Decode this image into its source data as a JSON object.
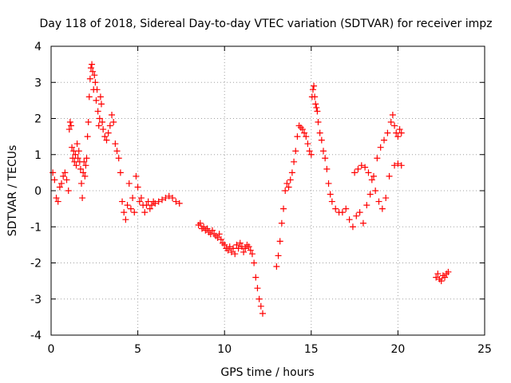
{
  "chart_data": {
    "type": "scatter",
    "title": "Day 118 of 2018, Sidereal Day-to-day VTEC variation (SDTVAR) for receiver impz",
    "xlabel": "GPS time / hours",
    "ylabel": "SDTVAR / TECUs",
    "xlim": [
      0,
      25
    ],
    "ylim": [
      -4,
      4
    ],
    "xticks": [
      "0",
      "5",
      "10",
      "15",
      "20",
      "25"
    ],
    "yticks": [
      "-4",
      "-3",
      "-2",
      "-1",
      "0",
      "1",
      "2",
      "3",
      "4"
    ],
    "grid": true,
    "marker": "plus",
    "color": "#ff0000",
    "series": [
      {
        "name": "impz",
        "x": [
          0.1,
          0.2,
          0.3,
          0.4,
          0.5,
          0.6,
          0.7,
          0.8,
          0.9,
          1.0,
          1.05,
          1.1,
          1.15,
          1.2,
          1.25,
          1.3,
          1.35,
          1.4,
          1.45,
          1.5,
          1.55,
          1.6,
          1.65,
          1.7,
          1.75,
          1.8,
          1.85,
          1.9,
          1.95,
          2.0,
          2.05,
          2.1,
          2.15,
          2.2,
          2.25,
          2.3,
          2.35,
          2.4,
          2.45,
          2.5,
          2.55,
          2.6,
          2.65,
          2.7,
          2.75,
          2.8,
          2.85,
          2.9,
          2.95,
          3.0,
          3.1,
          3.2,
          3.3,
          3.4,
          3.5,
          3.6,
          3.7,
          3.8,
          3.9,
          4.0,
          4.1,
          4.2,
          4.3,
          4.4,
          4.5,
          4.6,
          4.7,
          4.8,
          4.9,
          5.0,
          5.1,
          5.2,
          5.3,
          5.4,
          5.5,
          5.6,
          5.7,
          5.8,
          5.9,
          6.0,
          6.2,
          6.4,
          6.6,
          6.8,
          7.0,
          7.2,
          7.4,
          8.5,
          8.6,
          8.7,
          8.8,
          8.9,
          9.0,
          9.1,
          9.2,
          9.3,
          9.4,
          9.5,
          9.6,
          9.7,
          9.8,
          9.9,
          10.0,
          10.1,
          10.2,
          10.3,
          10.4,
          10.5,
          10.6,
          10.7,
          10.8,
          10.9,
          11.0,
          11.1,
          11.2,
          11.3,
          11.4,
          11.5,
          11.6,
          11.7,
          11.8,
          11.9,
          12.0,
          12.1,
          12.2,
          13.0,
          13.1,
          13.2,
          13.3,
          13.4,
          13.5,
          13.6,
          13.7,
          13.8,
          13.9,
          14.0,
          14.1,
          14.2,
          14.3,
          14.4,
          14.5,
          14.6,
          14.7,
          14.8,
          14.9,
          15.0,
          15.05,
          15.1,
          15.15,
          15.2,
          15.25,
          15.3,
          15.35,
          15.4,
          15.5,
          15.6,
          15.7,
          15.8,
          15.9,
          16.0,
          16.1,
          16.2,
          16.4,
          16.6,
          16.8,
          17.0,
          17.2,
          17.4,
          17.6,
          17.8,
          18.0,
          18.2,
          18.4,
          18.6,
          18.8,
          19.0,
          19.2,
          19.4,
          19.6,
          19.7,
          19.8,
          19.9,
          20.0,
          20.1,
          20.2,
          17.5,
          17.7,
          17.9,
          18.1,
          18.3,
          18.5,
          18.7,
          18.9,
          19.1,
          19.3,
          19.5,
          19.8,
          20.0,
          20.2,
          22.2,
          22.3,
          22.4,
          22.5,
          22.6,
          22.7,
          22.8,
          22.9
        ],
        "y": [
          0.5,
          0.3,
          -0.2,
          -0.3,
          0.1,
          0.2,
          0.4,
          0.5,
          0.3,
          0.0,
          1.7,
          1.9,
          1.8,
          1.2,
          0.9,
          1.1,
          0.8,
          1.0,
          0.7,
          1.3,
          0.9,
          1.1,
          0.8,
          0.6,
          0.2,
          -0.2,
          0.5,
          0.8,
          0.4,
          0.7,
          0.9,
          1.5,
          1.9,
          2.6,
          3.1,
          3.4,
          3.5,
          3.3,
          2.8,
          3.2,
          3.0,
          2.5,
          2.8,
          2.2,
          1.8,
          2.0,
          2.6,
          2.4,
          1.9,
          1.7,
          1.5,
          1.4,
          1.6,
          1.8,
          2.1,
          1.9,
          1.3,
          1.1,
          0.9,
          0.5,
          -0.3,
          -0.6,
          -0.8,
          -0.4,
          0.2,
          -0.5,
          -0.2,
          -0.6,
          0.4,
          0.1,
          -0.3,
          -0.2,
          -0.4,
          -0.6,
          -0.4,
          -0.3,
          -0.5,
          -0.4,
          -0.3,
          -0.35,
          -0.3,
          -0.25,
          -0.2,
          -0.15,
          -0.2,
          -0.3,
          -0.35,
          -0.95,
          -0.9,
          -1.05,
          -1.0,
          -1.1,
          -1.05,
          -1.15,
          -1.2,
          -1.1,
          -1.2,
          -1.25,
          -1.3,
          -1.2,
          -1.35,
          -1.45,
          -1.5,
          -1.6,
          -1.65,
          -1.55,
          -1.7,
          -1.6,
          -1.75,
          -1.5,
          -1.6,
          -1.45,
          -1.55,
          -1.7,
          -1.6,
          -1.5,
          -1.55,
          -1.65,
          -1.75,
          -2.0,
          -2.4,
          -2.7,
          -3.0,
          -3.2,
          -3.4,
          -2.1,
          -1.8,
          -1.4,
          -0.9,
          -0.5,
          0.0,
          0.2,
          0.1,
          0.3,
          0.5,
          0.8,
          1.1,
          1.5,
          1.8,
          1.75,
          1.7,
          1.6,
          1.5,
          1.3,
          1.1,
          1.0,
          2.6,
          2.8,
          2.9,
          2.6,
          2.4,
          2.3,
          2.2,
          1.9,
          1.6,
          1.4,
          1.1,
          0.9,
          0.6,
          0.2,
          -0.1,
          -0.3,
          -0.5,
          -0.6,
          -0.6,
          -0.5,
          -0.8,
          -1.0,
          -0.7,
          -0.6,
          -0.9,
          -0.4,
          -0.1,
          0.4,
          0.9,
          1.2,
          1.4,
          1.6,
          1.9,
          2.1,
          1.8,
          1.6,
          1.5,
          1.7,
          1.6,
          0.5,
          0.6,
          0.7,
          0.65,
          0.5,
          0.3,
          0.0,
          -0.3,
          -0.5,
          -0.2,
          0.4,
          0.7,
          0.75,
          0.7,
          -2.4,
          -2.3,
          -2.45,
          -2.5,
          -2.35,
          -2.4,
          -2.3,
          -2.25
        ]
      }
    ]
  }
}
